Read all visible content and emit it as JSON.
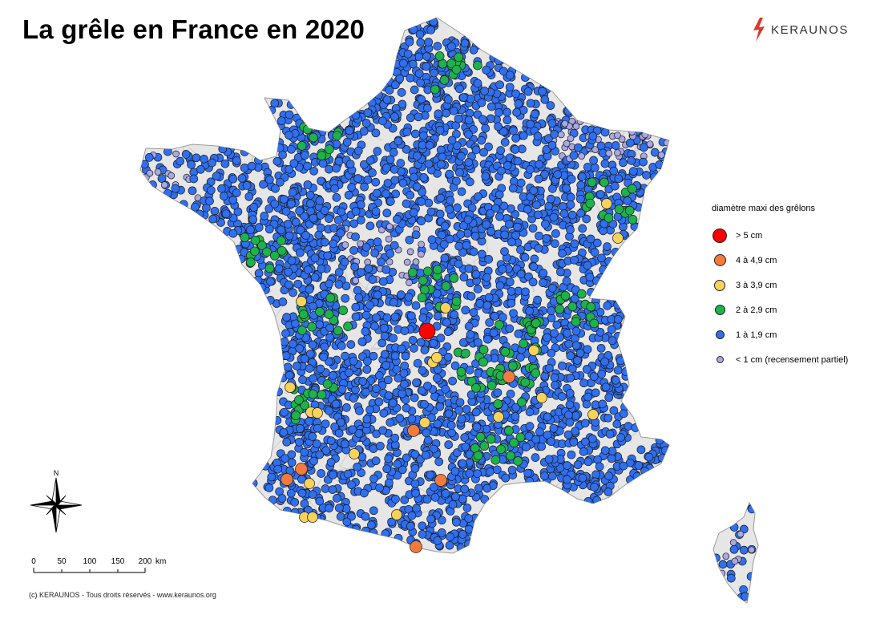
{
  "title": "La grêle en France en 2020",
  "brand": {
    "name": "KERAUNOS",
    "logo_icon": "lightning-bolt-icon",
    "logo_color": "#d9382b"
  },
  "legend": {
    "title": "diamètre maxi des grêlons",
    "items": [
      {
        "label": "> 5 cm",
        "color": "#ff0000"
      },
      {
        "label": "4 à 4,9 cm",
        "color": "#f47a3c"
      },
      {
        "label": "3 à 3,9 cm",
        "color": "#f9d25a"
      },
      {
        "label": "2 à 2,9 cm",
        "color": "#1db24b"
      },
      {
        "label": "1 à 1,9 cm",
        "color": "#2f6ff0"
      },
      {
        "label": "< 1 cm (recensement partiel)",
        "color": "#a9a7e4"
      }
    ]
  },
  "compass": {
    "north_label": "N",
    "icon": "compass-rose-icon"
  },
  "scale_bar": {
    "ticks": [
      "0",
      "50",
      "100",
      "150",
      "200"
    ],
    "unit": "km"
  },
  "copyright": "(c) KERAUNOS - Tous droits réservés - www.keraunos.org",
  "colors": {
    "land": "#e6e6e6",
    "border": "#9a9a9a",
    "marker_stroke": "#1a1a1a"
  }
}
